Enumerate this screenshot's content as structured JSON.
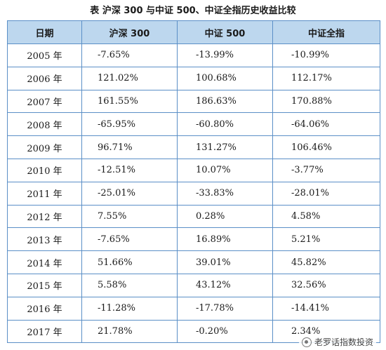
{
  "title": "表  沪深 300 与中证 500、中证全指历史收益比较",
  "headers": [
    "日期",
    "沪深 300",
    "中证 500",
    "中证全指"
  ],
  "rows": [
    [
      "2005 年",
      "-7.65%",
      "-13.99%",
      "-10.99%"
    ],
    [
      "2006 年",
      "121.02%",
      "100.68%",
      "112.17%"
    ],
    [
      "2007 年",
      "161.55%",
      "186.63%",
      "170.88%"
    ],
    [
      "2008 年",
      "-65.95%",
      "-60.80%",
      "-64.06%"
    ],
    [
      "2009 年",
      "96.71%",
      "131.27%",
      "106.46%"
    ],
    [
      "2010 年",
      "-12.51%",
      "10.07%",
      "-3.77%"
    ],
    [
      "2011 年",
      "-25.01%",
      "-33.83%",
      "-28.01%"
    ],
    [
      "2012 年",
      "7.55%",
      "0.28%",
      "4.58%"
    ],
    [
      "2013 年",
      "-7.65%",
      "16.89%",
      "5.21%"
    ],
    [
      "2014 年",
      "51.66%",
      "39.01%",
      "45.82%"
    ],
    [
      "2015 年",
      "5.58%",
      "43.12%",
      "32.56%"
    ],
    [
      "2016 年",
      "-11.28%",
      "-17.78%",
      "-14.41%"
    ],
    [
      "2017 年",
      "21.78%",
      "-0.20%",
      "2.34%"
    ]
  ],
  "watermark": {
    "text": "老罗话指数投资",
    "icon": "wechat-account-icon"
  },
  "colors": {
    "header_bg": "#bdd7ee",
    "border": "#5b8fc7"
  }
}
